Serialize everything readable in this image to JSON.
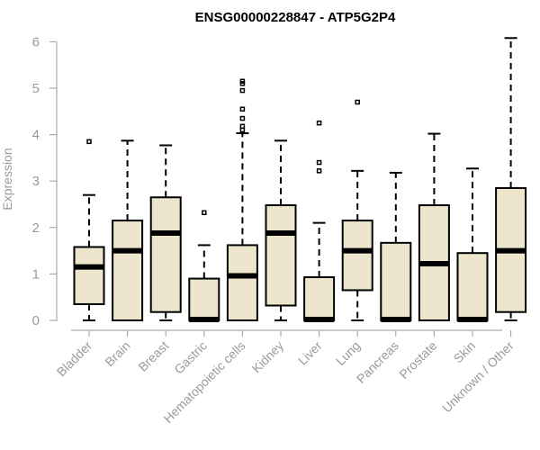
{
  "chart_data": {
    "type": "boxplot",
    "title": "ENSG00000228847 - ATP5G2P4",
    "ylabel": "Expression",
    "xlabel": "",
    "ylim": [
      0,
      6.1
    ],
    "yticks": [
      0,
      1,
      2,
      3,
      4,
      5,
      6
    ],
    "box_fill": "#ede6cc",
    "grid": false,
    "categories": [
      "Bladder",
      "Brain",
      "Breast",
      "Gastric",
      "Hematopoietic cells",
      "Kidney",
      "Liver",
      "Lung",
      "Pancreas",
      "Prostate",
      "Skin",
      "Unknown / Other"
    ],
    "boxes": [
      {
        "whisker_low": 0,
        "q1": 0.35,
        "median": 1.15,
        "q3": 1.58,
        "whisker_high": 2.7,
        "outliers": [
          3.85
        ]
      },
      {
        "whisker_low": 0,
        "q1": 0,
        "median": 1.5,
        "q3": 2.15,
        "whisker_high": 3.87,
        "outliers": []
      },
      {
        "whisker_low": 0,
        "q1": 0.18,
        "median": 1.88,
        "q3": 2.65,
        "whisker_high": 3.77,
        "outliers": []
      },
      {
        "whisker_low": 0,
        "q1": 0,
        "median": 0.02,
        "q3": 0.9,
        "whisker_high": 1.62,
        "outliers": [
          2.32
        ]
      },
      {
        "whisker_low": 0,
        "q1": 0,
        "median": 0.96,
        "q3": 1.62,
        "whisker_high": 4.03,
        "outliers": [
          4.1,
          4.18,
          4.35,
          4.55,
          4.95,
          5.1,
          5.15
        ]
      },
      {
        "whisker_low": 0,
        "q1": 0.32,
        "median": 1.88,
        "q3": 2.48,
        "whisker_high": 3.87,
        "outliers": []
      },
      {
        "whisker_low": 0,
        "q1": 0,
        "median": 0.02,
        "q3": 0.93,
        "whisker_high": 2.1,
        "outliers": [
          3.22,
          3.4,
          4.25
        ]
      },
      {
        "whisker_low": 0,
        "q1": 0.65,
        "median": 1.5,
        "q3": 2.15,
        "whisker_high": 3.22,
        "outliers": [
          4.7
        ]
      },
      {
        "whisker_low": 0,
        "q1": 0,
        "median": 0.02,
        "q3": 1.67,
        "whisker_high": 3.18,
        "outliers": []
      },
      {
        "whisker_low": 0,
        "q1": 0,
        "median": 1.22,
        "q3": 2.48,
        "whisker_high": 4.02,
        "outliers": []
      },
      {
        "whisker_low": 0,
        "q1": 0,
        "median": 0.02,
        "q3": 1.45,
        "whisker_high": 3.27,
        "outliers": []
      },
      {
        "whisker_low": 0,
        "q1": 0.18,
        "median": 1.5,
        "q3": 2.85,
        "whisker_high": 6.08,
        "outliers": []
      }
    ]
  }
}
